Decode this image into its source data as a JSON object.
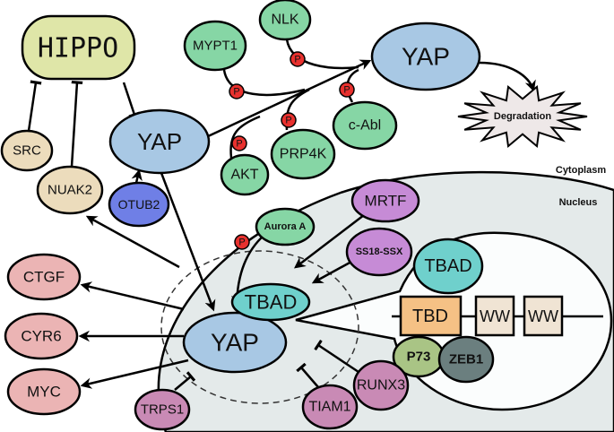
{
  "labels": {
    "hippo": "HIPPO",
    "src": "SRC",
    "nuak2": "NUAK2",
    "yap_cyto": "YAP",
    "otub2": "OTUB2",
    "mypt1": "MYPT1",
    "nlk": "NLK",
    "yap_phospho": "YAP",
    "cabl": "c-Abl",
    "prp4k": "PRP4K",
    "akt": "AKT",
    "degradation": "Degradation",
    "cytoplasm": "Cytoplasm",
    "nucleus": "Nucleus",
    "mrtf": "MRTF",
    "aurora": "Aurora A",
    "ss18": "SS18-SSX",
    "tbad": "TBAD",
    "yap_nuc": "YAP",
    "tbad_inset": "TBAD",
    "tbd": "TBD",
    "ww1": "WW",
    "ww2": "WW",
    "p73": "P73",
    "zeb1": "ZEB1",
    "runx3": "RUNX3",
    "tiam1": "TIAM1",
    "trps1": "TRPS1",
    "ctgf": "CTGF",
    "cyr6": "CYR6",
    "myc": "MYC",
    "phospho": "P"
  },
  "colors": {
    "hippo": "#dfe6a8",
    "regulator_tan": "#ecdcbc",
    "yap": "#a8c8e4",
    "otub2": "#6f7fe6",
    "kinase_green": "#86d6a5",
    "phospho_red": "#e8312e",
    "nucleus_fill": "#e4eaea",
    "purple": "#c68bd6",
    "teal": "#6fd0cc",
    "tbd": "#f5c185",
    "ww": "#f0e4d4",
    "p73": "#a9c485",
    "zeb1": "#6b7f7f",
    "pink": "#c98ab5",
    "target_pink": "#ebb4b4"
  }
}
